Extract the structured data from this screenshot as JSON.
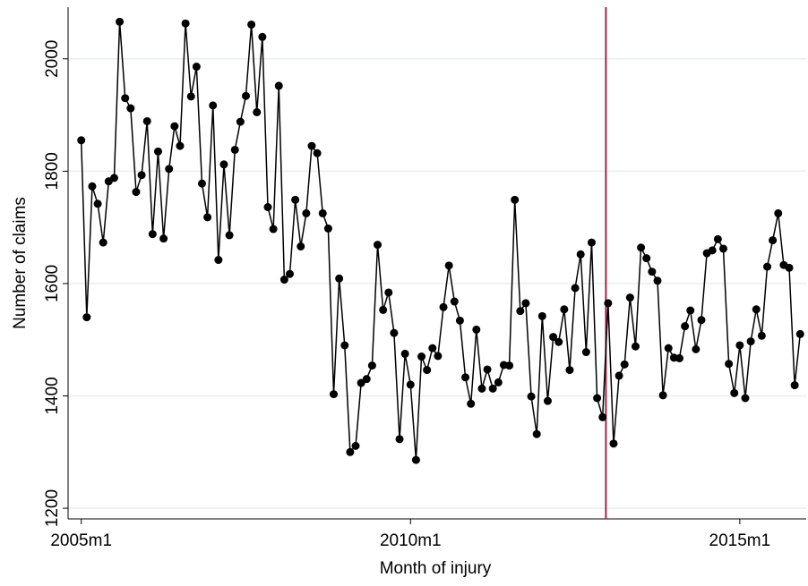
{
  "chart_data": {
    "type": "line",
    "xlabel": "Month of injury",
    "ylabel": "Number of claims",
    "x": [
      540,
      541,
      542,
      543,
      544,
      545,
      546,
      547,
      548,
      549,
      550,
      551,
      552,
      553,
      554,
      555,
      556,
      557,
      558,
      559,
      560,
      561,
      562,
      563,
      564,
      565,
      566,
      567,
      568,
      569,
      570,
      571,
      572,
      573,
      574,
      575,
      576,
      577,
      578,
      579,
      580,
      581,
      582,
      583,
      584,
      585,
      586,
      587,
      588,
      589,
      590,
      591,
      592,
      593,
      594,
      595,
      596,
      597,
      598,
      599,
      600,
      601,
      602,
      603,
      604,
      605,
      606,
      607,
      608,
      609,
      610,
      611,
      612,
      613,
      614,
      615,
      616,
      617,
      618,
      619,
      620,
      621,
      622,
      623,
      624,
      625,
      626,
      627,
      628,
      629,
      630,
      631,
      632,
      633,
      634,
      635,
      636,
      637,
      638,
      639,
      640,
      641,
      642,
      643,
      644,
      645,
      646,
      647,
      648,
      649,
      650,
      651,
      652,
      653,
      654,
      655,
      656,
      657,
      658,
      659,
      660,
      661,
      662,
      663,
      664,
      665,
      666,
      667,
      668,
      669,
      670,
      671
    ],
    "series": [
      {
        "color": "#000000",
        "values": [
          1855,
          1540,
          1773,
          1742,
          1673,
          1782,
          1788,
          2066,
          1930,
          1912,
          1763,
          1793,
          1889,
          1688,
          1835,
          1680,
          1804,
          1880,
          1845,
          2063,
          1933,
          1986,
          1778,
          1718,
          1917,
          1642,
          1812,
          1686,
          1838,
          1888,
          1934,
          2061,
          1905,
          2039,
          1736,
          1697,
          1952,
          1607,
          1617,
          1749,
          1666,
          1725,
          1845,
          1832,
          1725,
          1698,
          1403,
          1609,
          1490,
          1300,
          1311,
          1423,
          1430,
          1454,
          1669,
          1553,
          1584,
          1512,
          1323,
          1475,
          1420,
          1286,
          1470,
          1446,
          1485,
          1471,
          1558,
          1632,
          1568,
          1534,
          1433,
          1386,
          1518,
          1413,
          1447,
          1413,
          1424,
          1455,
          1454,
          1749,
          1551,
          1565,
          1399,
          1332,
          1542,
          1391,
          1505,
          1496,
          1554,
          1446,
          1592,
          1652,
          1478,
          1673,
          1396,
          1362,
          1565,
          1315,
          1436,
          1456,
          1575,
          1488,
          1664,
          1645,
          1621,
          1605,
          1401,
          1485,
          1468,
          1467,
          1524,
          1552,
          1483,
          1535,
          1654,
          1659,
          1679,
          1662,
          1457,
          1405,
          1490,
          1396,
          1497,
          1554,
          1507,
          1630,
          1677,
          1725,
          1633,
          1628,
          1419,
          1510
        ]
      }
    ],
    "reference_line": {
      "x": 635.6,
      "color": "#a3254a"
    },
    "xlim": [
      537.6,
      672.1
    ],
    "ylim": [
      1181,
      2092
    ],
    "xticks": [
      {
        "value": 540,
        "label": "2005m1"
      },
      {
        "value": 600,
        "label": "2010m1"
      },
      {
        "value": 660,
        "label": "2015m1"
      }
    ],
    "yticks": [
      1200,
      1400,
      1600,
      1800,
      2000
    ],
    "grid": true
  }
}
